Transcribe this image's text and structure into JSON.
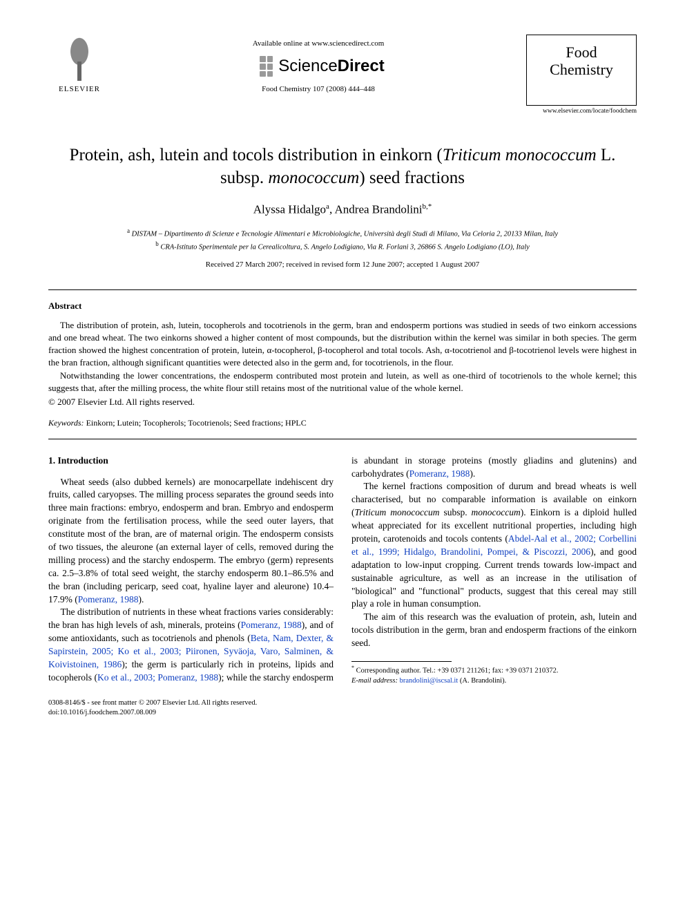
{
  "header": {
    "publisher_label": "ELSEVIER",
    "available_online": "Available online at www.sciencedirect.com",
    "sd_brand_prefix": "Science",
    "sd_brand_suffix": "Direct",
    "citation": "Food Chemistry 107 (2008) 444–448",
    "journal_name_line1": "Food",
    "journal_name_line2": "Chemistry",
    "journal_url": "www.elsevier.com/locate/foodchem"
  },
  "title": {
    "pre": "Protein, ash, lutein and tocols distribution in einkorn (",
    "latin": "Triticum monococcum",
    "mid": " L. subsp. ",
    "latin2": "monococcum",
    "post": ") seed fractions"
  },
  "authors": {
    "a1_name": "Alyssa Hidalgo",
    "a1_sup": "a",
    "a2_name": "Andrea Brandolini",
    "a2_sup": "b,*"
  },
  "affiliations": {
    "a_sup": "a",
    "a_text": "DISTAM – Dipartimento di Scienze e Tecnologie Alimentari e Microbiologiche, Università degli Studi di Milano, Via Celoria 2, 20133 Milan, Italy",
    "b_sup": "b",
    "b_text": "CRA-Istituto Sperimentale per la Cerealicoltura, S. Angelo Lodigiano, Via R. Forlani 3, 26866 S. Angelo Lodigiano (LO), Italy"
  },
  "dates": "Received 27 March 2007; received in revised form 12 June 2007; accepted 1 August 2007",
  "abstract": {
    "heading": "Abstract",
    "p1": "The distribution of protein, ash, lutein, tocopherols and tocotrienols in the germ, bran and endosperm portions was studied in seeds of two einkorn accessions and one bread wheat. The two einkorns showed a higher content of most compounds, but the distribution within the kernel was similar in both species. The germ fraction showed the highest concentration of protein, lutein, α-tocopherol, β-tocopherol and total tocols. Ash, α-tocotrienol and β-tocotrienol levels were highest in the bran fraction, although significant quantities were detected also in the germ and, for tocotrienols, in the flour.",
    "p2": "Notwithstanding the lower concentrations, the endosperm contributed most protein and lutein, as well as one-third of tocotrienols to the whole kernel; this suggests that, after the milling process, the white flour still retains most of the nutritional value of the whole kernel.",
    "copyright": "© 2007 Elsevier Ltd. All rights reserved."
  },
  "keywords": {
    "label": "Keywords:",
    "list": "Einkorn; Lutein; Tocopherols; Tocotrienols; Seed fractions; HPLC"
  },
  "intro": {
    "heading": "1. Introduction",
    "p1": "Wheat seeds (also dubbed kernels) are monocarpellate indehiscent dry fruits, called caryopses. The milling process separates the ground seeds into three main fractions: embryo, endosperm and bran. Embryo and endosperm originate from the fertilisation process, while the seed outer layers, that constitute most of the bran, are of maternal origin. The endosperm consists of two tissues, the aleurone (an external layer of cells, removed during the milling process) and the starchy endosperm. The embryo (germ) represents ca. 2.5–3.8% of total seed weight, the starchy endosperm 80.1–86.5% and the bran (including pericarp, seed coat, hyaline layer and aleurone) 10.4–17.9% (",
    "p1_ref": "Pomeranz, 1988",
    "p1_post": ").",
    "p2_pre": "The distribution of nutrients in these wheat fractions varies considerably: the bran has high levels of ash, minerals, proteins (",
    "p2_ref1": "Pomeranz, 1988",
    "p2_mid1": "), and of some antioxidants, such as tocotrienols and phenols (",
    "p2_ref2": "Beta, Nam, Dexter, & ",
    "p2_ref2b": "Sapirstein, 2005; Ko et al., 2003; Piironen, Syväoja, Varo, Salminen, & Koivistoinen, 1986",
    "p2_mid2": "); the germ is particularly rich in proteins, lipids and tocopherols (",
    "p2_ref3": "Ko et al., 2003; Pomeranz, 1988",
    "p2_mid3": "); while the starchy endosperm is abundant in storage proteins (mostly gliadins and glutenins) and carbohydrates (",
    "p2_ref4": "Pomeranz, 1988",
    "p2_post": ").",
    "p3_pre": "The kernel fractions composition of durum and bread wheats is well characterised, but no comparable information is available on einkorn (",
    "p3_latin": "Triticum monococcum",
    "p3_mid1": " subsp. ",
    "p3_latin2": "monococcum",
    "p3_mid2": "). Einkorn is a diploid hulled wheat appreciated for its excellent nutritional properties, including high protein, carotenoids and tocols contents (",
    "p3_ref": "Abdel-Aal et al., 2002; Corbellini et al., 1999; Hidalgo, Brandolini, Pompei, & Piscozzi, 2006",
    "p3_post": "), and good adaptation to low-input cropping. Current trends towards low-impact and sustainable agriculture, as well as an increase in the utilisation of \"biological\" and \"functional\" products, suggest that this cereal may still play a role in human consumption.",
    "p4": "The aim of this research was the evaluation of protein, ash, lutein and tocols distribution in the germ, bran and endosperm fractions of the einkorn seed."
  },
  "footnotes": {
    "corr_label": "*",
    "corr_text": "Corresponding author. Tel.: +39 0371 211261; fax: +39 0371 210372.",
    "email_label": "E-mail address:",
    "email": "brandolini@iscsal.it",
    "email_owner": "(A. Brandolini)."
  },
  "footer": {
    "line1": "0308-8146/$ - see front matter © 2007 Elsevier Ltd. All rights reserved.",
    "line2": "doi:10.1016/j.foodchem.2007.08.009"
  }
}
